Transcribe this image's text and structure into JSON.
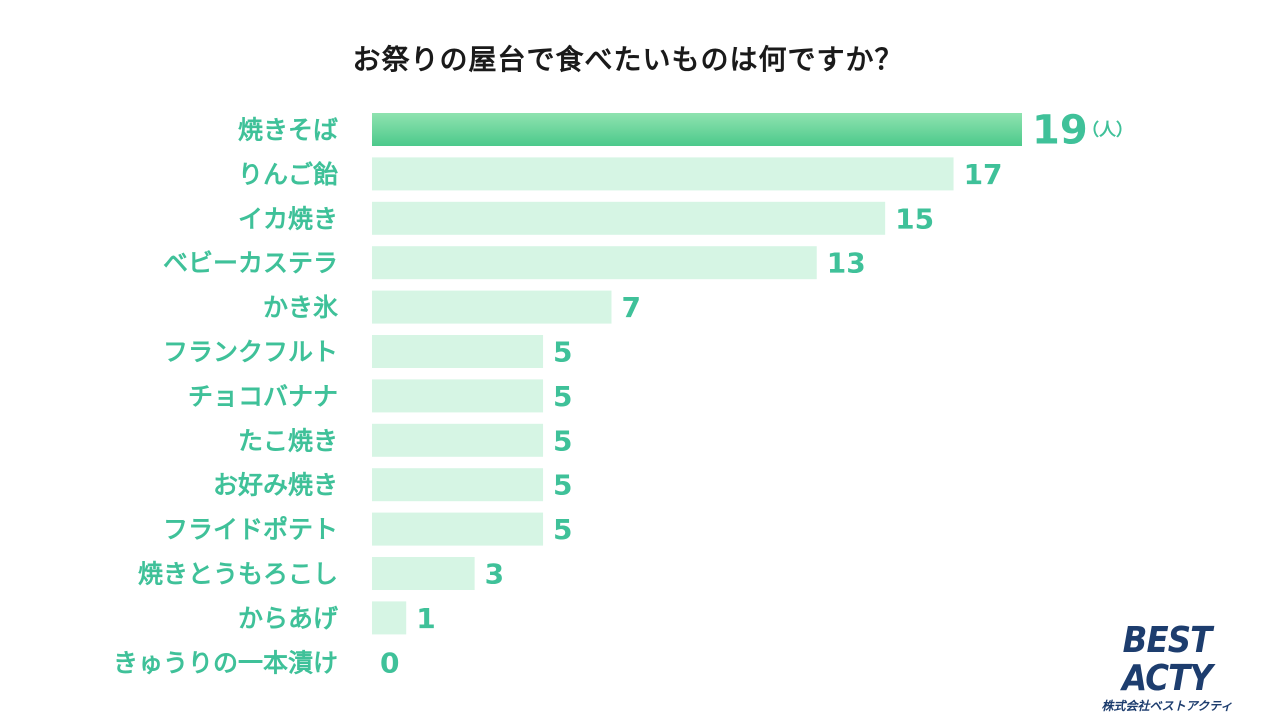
{
  "chart_data": {
    "type": "bar",
    "orientation": "horizontal",
    "title": "お祭りの屋台で食べたいものは何ですか？",
    "unit": "（人）",
    "categories": [
      "焼きそば",
      "りんご飴",
      "イカ焼き",
      "ベビーカステラ",
      "かき氷",
      "フランクフルト",
      "チョコバナナ",
      "たこ焼き",
      "お好み焼き",
      "フライドポテト",
      "焼きとうもろこし",
      "からあげ",
      "きゅうりの一本漬け"
    ],
    "values": [
      19,
      17,
      15,
      13,
      7,
      5,
      5,
      5,
      5,
      5,
      3,
      1,
      0
    ],
    "xlim": [
      0,
      19
    ],
    "grid": false,
    "legend": "none",
    "colors": {
      "bar": "#d6f5e4",
      "top_bar_start": "#8fe3b0",
      "top_bar_end": "#4cc98b",
      "label": "#3fc199"
    }
  },
  "logo": {
    "name": "BEST ACTY",
    "subtitle": "株式会社ベストアクティ"
  }
}
